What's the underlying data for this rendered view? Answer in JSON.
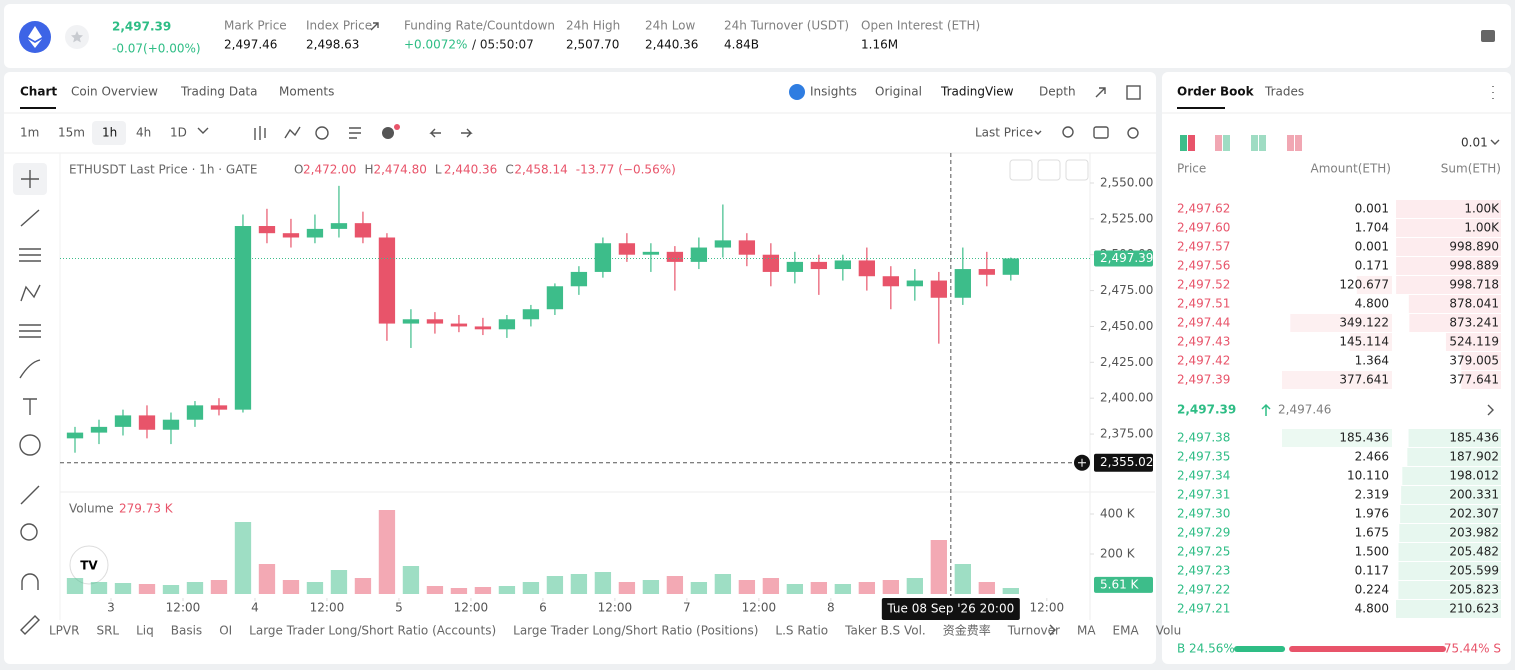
{
  "header": {
    "price": "2,497.39",
    "change": "-0.07(+0.00%)",
    "stats": [
      {
        "label": "Mark Price",
        "value": "2,497.46"
      },
      {
        "label": "Index Price",
        "value": "2,498.63"
      },
      {
        "label": "Funding Rate/Countdown",
        "value": "+0.0072%",
        "countdown": "/ 05:50:07"
      },
      {
        "label": "24h High",
        "value": "2,507.70"
      },
      {
        "label": "24h Low",
        "value": "2,440.36"
      },
      {
        "label": "24h Turnover (USDT)",
        "value": "4.84B"
      },
      {
        "label": "Open Interest (ETH)",
        "value": "1.16M"
      }
    ]
  },
  "chart_tabs": [
    "Chart",
    "Coin Overview",
    "Trading Data",
    "Moments"
  ],
  "view_tabs": [
    "Insights",
    "Original",
    "TradingView",
    "Depth"
  ],
  "intervals": [
    "1m",
    "15m",
    "1h",
    "4h",
    "1D"
  ],
  "price_type": "Last Price",
  "indicators": [
    "LPVR",
    "SRL",
    "Liq",
    "Basis",
    "OI",
    "Large Trader Long/Short Ratio (Accounts)",
    "Large Trader Long/Short Ratio (Positions)",
    "L.S Ratio",
    "Taker B.S Vol.",
    "资金费率",
    "Turnover",
    "MA",
    "EMA",
    "Volu"
  ],
  "chart_data": {
    "type": "candlestick",
    "title": "ETHUSDT Last Price · 1h · GATE",
    "ohlc": [
      {
        "key": "O",
        "value": 2472.0,
        "label": "2,472.00"
      },
      {
        "key": "H",
        "value": 2474.8,
        "label": "2,474.80"
      },
      {
        "key": "L",
        "value": 2440.36,
        "label": "2,440.36"
      },
      {
        "key": "C",
        "value": 2458.14,
        "label": "2,458.14"
      }
    ],
    "change": "-13.77 (−0.56%)",
    "up_color": "#3dbd8a",
    "down_color": "#e8546a",
    "xlim": [
      -8.5,
      163.2
    ],
    "xticks": [
      {
        "value": 0,
        "label": "3"
      },
      {
        "value": 12,
        "label": "12:00"
      },
      {
        "value": 24,
        "label": "4"
      },
      {
        "value": 36,
        "label": "12:00"
      },
      {
        "value": 48,
        "label": "5"
      },
      {
        "value": 60,
        "label": "12:00"
      },
      {
        "value": 72,
        "label": "6"
      },
      {
        "value": 84,
        "label": "12:00"
      },
      {
        "value": 96,
        "label": "7"
      },
      {
        "value": 108,
        "label": "12:00"
      },
      {
        "value": 120,
        "label": "8"
      },
      {
        "value": 156,
        "label": "12:00"
      }
    ],
    "ylim": [
      2336,
      2569.5
    ],
    "yticks": [
      {
        "value": 2550,
        "label": "2,550.00"
      },
      {
        "value": 2525,
        "label": "2,525.00"
      },
      {
        "value": 2500,
        "label": "2,500.00"
      },
      {
        "value": 2475,
        "label": "2,475.00"
      },
      {
        "value": 2450,
        "label": "2,450.00"
      },
      {
        "value": 2425,
        "label": "2,425.00"
      },
      {
        "value": 2400,
        "label": "2,400.00"
      },
      {
        "value": 2375,
        "label": "2,375.00"
      }
    ],
    "x": [
      -6,
      -2,
      2,
      6,
      10,
      14,
      18,
      22,
      26,
      30,
      34,
      38,
      42,
      46,
      50,
      54,
      58,
      62,
      66,
      70,
      74,
      78,
      82,
      86,
      90,
      94,
      98,
      102,
      106,
      110,
      114,
      118,
      122,
      126,
      130,
      134,
      138,
      142,
      146,
      150
    ],
    "open": [
      2372,
      2376,
      2380,
      2388,
      2378,
      2385,
      2395,
      2392,
      2520,
      2515,
      2512,
      2518,
      2522,
      2512,
      2452,
      2455,
      2452,
      2450,
      2448,
      2455,
      2462,
      2478,
      2488,
      2508,
      2500,
      2502,
      2495,
      2505,
      2510,
      2500,
      2488,
      2495,
      2490,
      2496,
      2485,
      2478,
      2482,
      2470,
      2490,
      2486
    ],
    "high": [
      2380,
      2385,
      2392,
      2395,
      2390,
      2398,
      2400,
      2528,
      2532,
      2525,
      2528,
      2548,
      2530,
      2515,
      2462,
      2460,
      2458,
      2456,
      2458,
      2465,
      2480,
      2492,
      2512,
      2515,
      2508,
      2506,
      2512,
      2535,
      2515,
      2508,
      2502,
      2500,
      2500,
      2505,
      2492,
      2490,
      2488,
      2505,
      2502,
      2498
    ],
    "low": [
      2362,
      2368,
      2374,
      2372,
      2368,
      2380,
      2388,
      2390,
      2508,
      2505,
      2508,
      2512,
      2508,
      2440,
      2435,
      2445,
      2446,
      2444,
      2442,
      2450,
      2458,
      2472,
      2484,
      2495,
      2488,
      2475,
      2490,
      2498,
      2492,
      2478,
      2480,
      2472,
      2482,
      2475,
      2462,
      2468,
      2438,
      2465,
      2478,
      2482
    ],
    "close": [
      2376,
      2380,
      2388,
      2378,
      2385,
      2395,
      2392,
      2520,
      2515,
      2512,
      2518,
      2522,
      2512,
      2452,
      2455,
      2452,
      2450,
      2448,
      2455,
      2462,
      2478,
      2488,
      2508,
      2500,
      2502,
      2495,
      2505,
      2510,
      2500,
      2488,
      2495,
      2490,
      2496,
      2485,
      2478,
      2482,
      2470,
      2490,
      2486,
      2497.39
    ],
    "last_price": {
      "value": 2497.39,
      "label": "2,497.39"
    },
    "crosshair": {
      "price": {
        "value": 2355.02,
        "label": "2,355.02"
      },
      "time": {
        "value": 140,
        "label": "Tue 08 Sep '26   20:00"
      }
    },
    "volume": {
      "title": "Volume",
      "current": "279.73 K",
      "ylim": [
        0,
        495
      ],
      "yticks": [
        {
          "value": 400,
          "label": "400 K"
        },
        {
          "value": 200,
          "label": "200 K"
        }
      ],
      "values": [
        80,
        60,
        55,
        50,
        45,
        60,
        70,
        360,
        150,
        70,
        60,
        120,
        80,
        420,
        140,
        40,
        30,
        35,
        40,
        60,
        90,
        100,
        110,
        60,
        70,
        90,
        60,
        100,
        70,
        80,
        50,
        60,
        50,
        60,
        70,
        80,
        270,
        150,
        60,
        30
      ],
      "last": {
        "value": 5.61,
        "label": "5.61 K"
      }
    }
  },
  "order_book": {
    "tabs": [
      "Order Book",
      "Trades"
    ],
    "precision": "0.01",
    "headers": [
      "Price",
      "Amount(ETH)",
      "Sum(ETH)"
    ],
    "asks": [
      [
        "2,497.62",
        "0.001",
        "1.00K"
      ],
      [
        "2,497.60",
        "1.704",
        "1.00K"
      ],
      [
        "2,497.57",
        "0.001",
        "998.890"
      ],
      [
        "2,497.56",
        "0.171",
        "998.889"
      ],
      [
        "2,497.52",
        "120.677",
        "998.718"
      ],
      [
        "2,497.51",
        "4.800",
        "878.041"
      ],
      [
        "2,497.44",
        "349.122",
        "873.241"
      ],
      [
        "2,497.43",
        "145.114",
        "524.119"
      ],
      [
        "2,497.42",
        "1.364",
        "379.005"
      ],
      [
        "2,497.39",
        "377.641",
        "377.641"
      ]
    ],
    "mid_price": "2,497.39",
    "mark_price": "2,497.46",
    "bids": [
      [
        "2,497.38",
        "185.436",
        "185.436"
      ],
      [
        "2,497.35",
        "2.466",
        "187.902"
      ],
      [
        "2,497.34",
        "10.110",
        "198.012"
      ],
      [
        "2,497.31",
        "2.319",
        "200.331"
      ],
      [
        "2,497.30",
        "1.976",
        "202.307"
      ],
      [
        "2,497.29",
        "1.675",
        "203.982"
      ],
      [
        "2,497.25",
        "1.500",
        "205.482"
      ],
      [
        "2,497.23",
        "0.117",
        "205.599"
      ],
      [
        "2,497.22",
        "0.224",
        "205.823"
      ],
      [
        "2,497.21",
        "4.800",
        "210.623"
      ]
    ],
    "ratio": {
      "buy": 24.56,
      "sell": 75.44,
      "buy_label": "B 24.56%",
      "sell_label": "75.44% S"
    }
  }
}
